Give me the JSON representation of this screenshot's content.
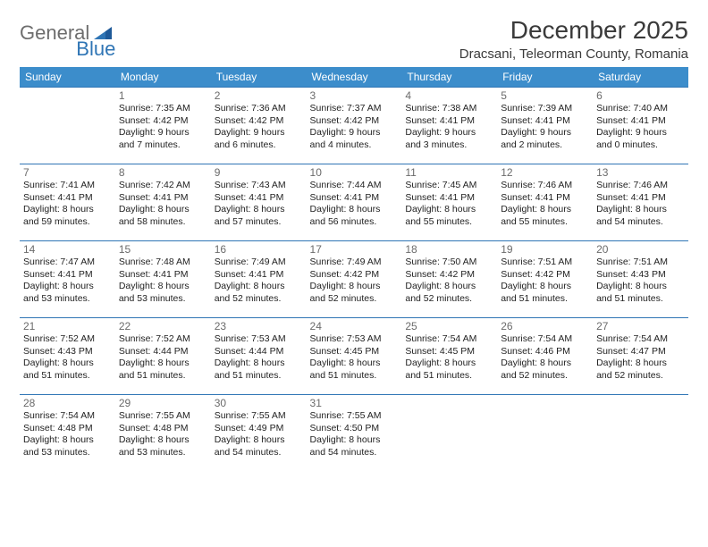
{
  "logo": {
    "gray": "General",
    "blue": "Blue"
  },
  "title": "December 2025",
  "location": "Dracsani, Teleorman County, Romania",
  "day_headers": [
    "Sunday",
    "Monday",
    "Tuesday",
    "Wednesday",
    "Thursday",
    "Friday",
    "Saturday"
  ],
  "colors": {
    "header_bg": "#3c8dcb",
    "header_fg": "#ffffff",
    "rule": "#2f75b5",
    "logo_gray": "#6d6d6d",
    "logo_blue": "#2f75b5",
    "text": "#222222",
    "daynum": "#6b6b6b"
  },
  "weeks": [
    [
      null,
      {
        "n": "1",
        "sr": "7:35 AM",
        "ss": "4:42 PM",
        "dh": "9",
        "dm": "7"
      },
      {
        "n": "2",
        "sr": "7:36 AM",
        "ss": "4:42 PM",
        "dh": "9",
        "dm": "6"
      },
      {
        "n": "3",
        "sr": "7:37 AM",
        "ss": "4:42 PM",
        "dh": "9",
        "dm": "4"
      },
      {
        "n": "4",
        "sr": "7:38 AM",
        "ss": "4:41 PM",
        "dh": "9",
        "dm": "3"
      },
      {
        "n": "5",
        "sr": "7:39 AM",
        "ss": "4:41 PM",
        "dh": "9",
        "dm": "2"
      },
      {
        "n": "6",
        "sr": "7:40 AM",
        "ss": "4:41 PM",
        "dh": "9",
        "dm": "0"
      }
    ],
    [
      {
        "n": "7",
        "sr": "7:41 AM",
        "ss": "4:41 PM",
        "dh": "8",
        "dm": "59"
      },
      {
        "n": "8",
        "sr": "7:42 AM",
        "ss": "4:41 PM",
        "dh": "8",
        "dm": "58"
      },
      {
        "n": "9",
        "sr": "7:43 AM",
        "ss": "4:41 PM",
        "dh": "8",
        "dm": "57"
      },
      {
        "n": "10",
        "sr": "7:44 AM",
        "ss": "4:41 PM",
        "dh": "8",
        "dm": "56"
      },
      {
        "n": "11",
        "sr": "7:45 AM",
        "ss": "4:41 PM",
        "dh": "8",
        "dm": "55"
      },
      {
        "n": "12",
        "sr": "7:46 AM",
        "ss": "4:41 PM",
        "dh": "8",
        "dm": "55"
      },
      {
        "n": "13",
        "sr": "7:46 AM",
        "ss": "4:41 PM",
        "dh": "8",
        "dm": "54"
      }
    ],
    [
      {
        "n": "14",
        "sr": "7:47 AM",
        "ss": "4:41 PM",
        "dh": "8",
        "dm": "53"
      },
      {
        "n": "15",
        "sr": "7:48 AM",
        "ss": "4:41 PM",
        "dh": "8",
        "dm": "53"
      },
      {
        "n": "16",
        "sr": "7:49 AM",
        "ss": "4:41 PM",
        "dh": "8",
        "dm": "52"
      },
      {
        "n": "17",
        "sr": "7:49 AM",
        "ss": "4:42 PM",
        "dh": "8",
        "dm": "52"
      },
      {
        "n": "18",
        "sr": "7:50 AM",
        "ss": "4:42 PM",
        "dh": "8",
        "dm": "52"
      },
      {
        "n": "19",
        "sr": "7:51 AM",
        "ss": "4:42 PM",
        "dh": "8",
        "dm": "51"
      },
      {
        "n": "20",
        "sr": "7:51 AM",
        "ss": "4:43 PM",
        "dh": "8",
        "dm": "51"
      }
    ],
    [
      {
        "n": "21",
        "sr": "7:52 AM",
        "ss": "4:43 PM",
        "dh": "8",
        "dm": "51"
      },
      {
        "n": "22",
        "sr": "7:52 AM",
        "ss": "4:44 PM",
        "dh": "8",
        "dm": "51"
      },
      {
        "n": "23",
        "sr": "7:53 AM",
        "ss": "4:44 PM",
        "dh": "8",
        "dm": "51"
      },
      {
        "n": "24",
        "sr": "7:53 AM",
        "ss": "4:45 PM",
        "dh": "8",
        "dm": "51"
      },
      {
        "n": "25",
        "sr": "7:54 AM",
        "ss": "4:45 PM",
        "dh": "8",
        "dm": "51"
      },
      {
        "n": "26",
        "sr": "7:54 AM",
        "ss": "4:46 PM",
        "dh": "8",
        "dm": "52"
      },
      {
        "n": "27",
        "sr": "7:54 AM",
        "ss": "4:47 PM",
        "dh": "8",
        "dm": "52"
      }
    ],
    [
      {
        "n": "28",
        "sr": "7:54 AM",
        "ss": "4:48 PM",
        "dh": "8",
        "dm": "53"
      },
      {
        "n": "29",
        "sr": "7:55 AM",
        "ss": "4:48 PM",
        "dh": "8",
        "dm": "53"
      },
      {
        "n": "30",
        "sr": "7:55 AM",
        "ss": "4:49 PM",
        "dh": "8",
        "dm": "54"
      },
      {
        "n": "31",
        "sr": "7:55 AM",
        "ss": "4:50 PM",
        "dh": "8",
        "dm": "54"
      },
      null,
      null,
      null
    ]
  ]
}
